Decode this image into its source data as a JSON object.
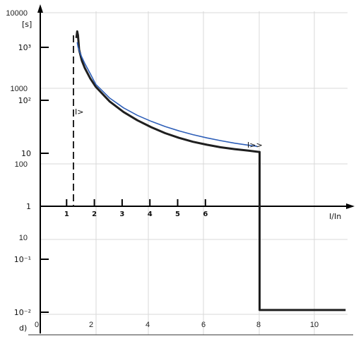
{
  "chart_data": {
    "type": "line",
    "panel_label": "d)",
    "overlay_axes": {
      "x_ticks": [
        "0",
        "2",
        "4",
        "6",
        "8",
        "10"
      ],
      "x_range": [
        0,
        11
      ],
      "y_ticks": [
        "10000",
        "1000",
        "100",
        "10"
      ],
      "y_scale": "log",
      "grid": true
    },
    "scan_axes": {
      "y_unit": "[s]",
      "y_ticks": [
        "10³",
        "10²",
        "10",
        "1",
        "10⁻¹",
        "10⁻²"
      ],
      "x_ticks": [
        "1",
        "2",
        "3",
        "4",
        "5",
        "6"
      ],
      "x_label": "I/In"
    },
    "annotations": {
      "overload": "I>",
      "short_circuit": "I>>"
    },
    "series": [
      {
        "color": "#1f1f1f",
        "x": [
          1.3,
          1.33,
          1.36,
          1.4,
          1.5,
          1.6,
          1.8,
          2.0,
          2.5,
          3.0,
          3.5,
          4.0,
          4.5,
          5.0,
          5.5,
          6.0,
          6.5,
          7.0,
          7.5,
          7.88,
          7.9,
          7.9,
          11.0
        ],
        "y": [
          1500,
          2000,
          1700,
          900,
          560,
          410,
          260,
          180,
          95,
          60,
          42,
          31,
          24,
          19.5,
          16.5,
          14.5,
          13,
          12,
          11.2,
          10.6,
          10.6,
          0.011,
          0.011
        ]
      },
      {
        "color": "#2e5fb8",
        "x": [
          1.33,
          1.36,
          1.42,
          1.5,
          1.6,
          1.8,
          2.0,
          2.5,
          3.0,
          3.5,
          4.0,
          4.5,
          5.0,
          5.5,
          6.0,
          6.5,
          7.0,
          7.5,
          7.82
        ],
        "y": [
          1250,
          1020,
          820,
          650,
          500,
          320,
          200,
          110,
          72,
          52,
          40,
          32,
          26.5,
          22.5,
          19.5,
          17.3,
          15.5,
          14.2,
          13.5
        ]
      }
    ]
  }
}
